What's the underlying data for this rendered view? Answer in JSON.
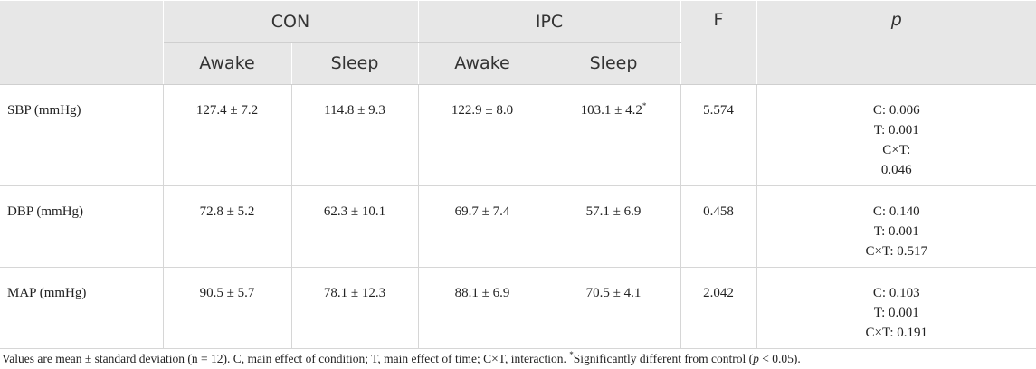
{
  "table": {
    "header": {
      "cols": [
        "",
        "CON",
        "IPC",
        "F",
        "p"
      ],
      "sub": [
        "Awake",
        "Sleep",
        "Awake",
        "Sleep"
      ]
    },
    "rows": [
      {
        "label": "SBP (mmHg)",
        "cells": [
          "127.4 ± 7.2",
          "114.8 ± 9.3",
          "122.9 ± 8.0",
          "103.1 ± 4.2"
        ],
        "marks": [
          null,
          null,
          null,
          "*"
        ],
        "f": "5.574",
        "p": [
          "C: 0.006",
          "T: 0.001",
          "C×T:",
          "0.046"
        ]
      },
      {
        "label": "DBP (mmHg)",
        "cells": [
          "72.8 ± 5.2",
          "62.3 ± 10.1",
          "69.7 ± 7.4",
          "57.1 ± 6.9"
        ],
        "marks": [
          null,
          null,
          null,
          null
        ],
        "f": "0.458",
        "p": [
          "C: 0.140",
          "T: 0.001",
          "C×T: 0.517"
        ]
      },
      {
        "label": "MAP (mmHg)",
        "cells": [
          "90.5 ± 5.7",
          "78.1 ± 12.3",
          "88.1 ± 6.9",
          "70.5 ± 4.1"
        ],
        "marks": [
          null,
          null,
          null,
          null
        ],
        "f": "2.042",
        "p": [
          "C: 0.103",
          "T: 0.001",
          "C×T: 0.191"
        ]
      }
    ]
  },
  "footnote": [
    "Values are mean ± standard deviation (n = 12). C, main effect of condition; T, main effect of time; C×T, interaction. ",
    "*",
    "Significantly different from control (",
    "p",
    " < 0.05)."
  ]
}
